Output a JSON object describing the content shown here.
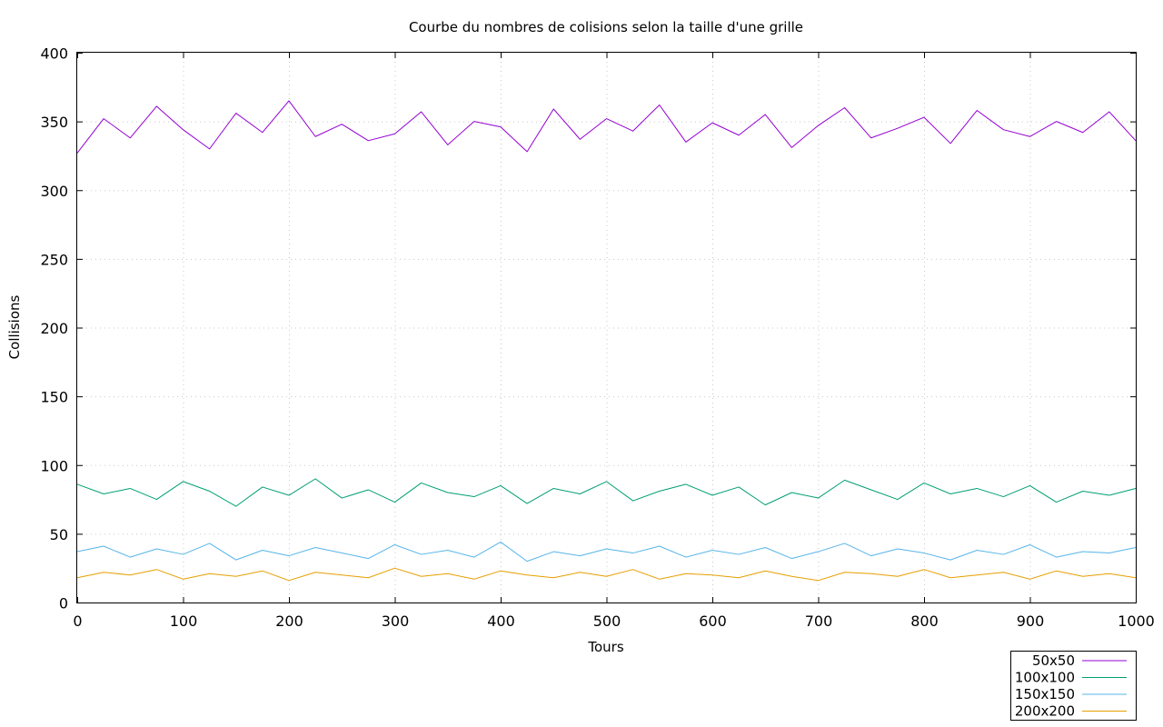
{
  "chart_data": {
    "type": "line",
    "title": "Courbe du nombres de colisions selon la taille d'une grille",
    "xlabel": "Tours",
    "ylabel": "Collisions",
    "xlim": [
      0,
      1000
    ],
    "ylim": [
      0,
      400
    ],
    "x_ticks": [
      "0",
      "100",
      "200",
      "300",
      "400",
      "500",
      "600",
      "700",
      "800",
      "900",
      "1000"
    ],
    "y_ticks": [
      "0",
      "50",
      "100",
      "150",
      "200",
      "250",
      "300",
      "350",
      "400"
    ],
    "grid": true,
    "legend_position": "bottom-right",
    "x": [
      0,
      25,
      50,
      75,
      100,
      125,
      150,
      175,
      200,
      225,
      250,
      275,
      300,
      325,
      350,
      375,
      400,
      425,
      450,
      475,
      500,
      525,
      550,
      575,
      600,
      625,
      650,
      675,
      700,
      725,
      750,
      775,
      800,
      825,
      850,
      875,
      900,
      925,
      950,
      975,
      1000
    ],
    "series": [
      {
        "name": "50x50",
        "color": "#9400d3",
        "values": [
          327,
          352,
          338,
          361,
          344,
          330,
          356,
          342,
          365,
          339,
          348,
          336,
          341,
          357,
          333,
          350,
          346,
          328,
          359,
          337,
          352,
          343,
          362,
          335,
          349,
          340,
          355,
          331,
          347,
          360,
          338,
          345,
          353,
          334,
          358,
          344,
          339,
          350,
          342,
          357,
          336
        ]
      },
      {
        "name": "100x100",
        "color": "#009e73",
        "values": [
          86,
          79,
          83,
          75,
          88,
          81,
          70,
          84,
          78,
          90,
          76,
          82,
          73,
          87,
          80,
          77,
          85,
          72,
          83,
          79,
          88,
          74,
          81,
          86,
          78,
          84,
          71,
          80,
          76,
          89,
          82,
          75,
          87,
          79,
          83,
          77,
          85,
          73,
          81,
          78,
          83
        ]
      },
      {
        "name": "150x150",
        "color": "#56b4e9",
        "values": [
          37,
          41,
          33,
          39,
          35,
          43,
          31,
          38,
          34,
          40,
          36,
          32,
          42,
          35,
          38,
          33,
          44,
          30,
          37,
          34,
          39,
          36,
          41,
          33,
          38,
          35,
          40,
          32,
          37,
          43,
          34,
          39,
          36,
          31,
          38,
          35,
          42,
          33,
          37,
          36,
          40
        ]
      },
      {
        "name": "200x200",
        "color": "#e69f00",
        "values": [
          18,
          22,
          20,
          24,
          17,
          21,
          19,
          23,
          16,
          22,
          20,
          18,
          25,
          19,
          21,
          17,
          23,
          20,
          18,
          22,
          19,
          24,
          17,
          21,
          20,
          18,
          23,
          19,
          16,
          22,
          21,
          19,
          24,
          18,
          20,
          22,
          17,
          23,
          19,
          21,
          18
        ]
      }
    ]
  }
}
